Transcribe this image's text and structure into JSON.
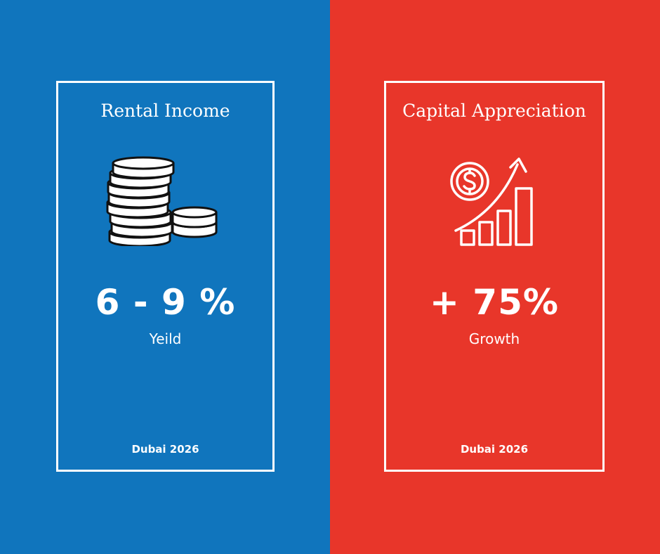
{
  "colors": {
    "left_bg": "#1075BD",
    "right_bg": "#E8362A",
    "text": "#FFFFFF"
  },
  "cards": [
    {
      "title": "Rental Income",
      "icon": "coin-stack-icon",
      "value": "6 - 9 %",
      "label": "Yeild",
      "footer": "Dubai 2026"
    },
    {
      "title": "Capital Appreciation",
      "icon": "growth-chart-dollar-icon",
      "value": "+ 75%",
      "label": "Growth",
      "footer": "Dubai 2026"
    }
  ]
}
